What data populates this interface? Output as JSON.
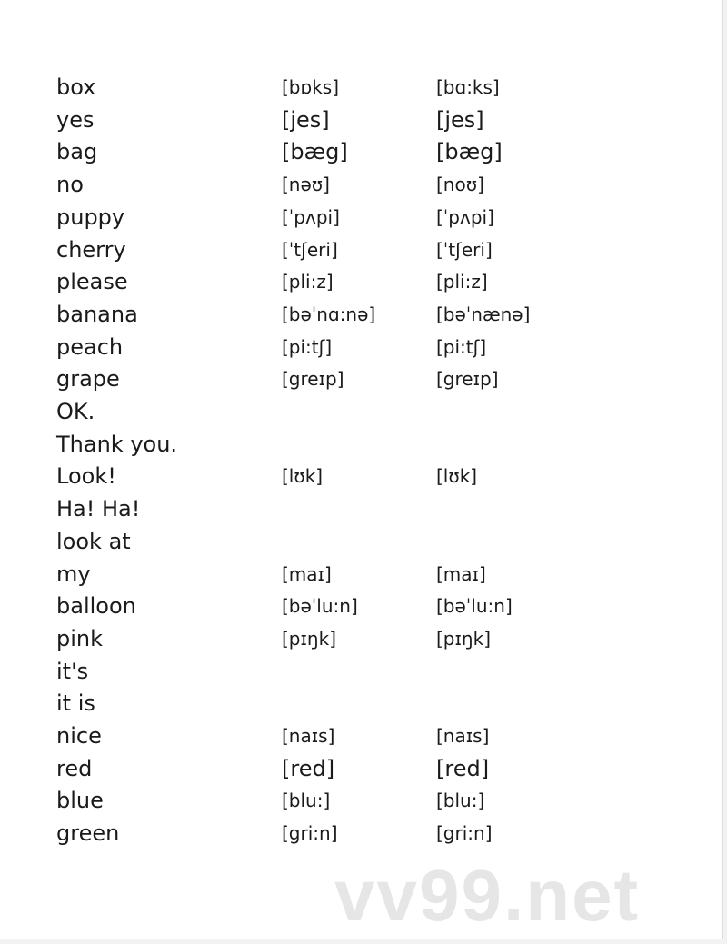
{
  "watermark": "vv99.net",
  "rows": [
    {
      "word": "box",
      "uk": "[bɒks]",
      "us": "[bɑ:ks]"
    },
    {
      "word": "yes",
      "uk": "[jes]",
      "us": "[jes]",
      "big": true
    },
    {
      "word": "bag",
      "uk": "[bæg]",
      "us": "[bæg]",
      "big": true
    },
    {
      "word": "no",
      "uk": "[nəʊ]",
      "us": "[noʊ]"
    },
    {
      "word": "puppy",
      "uk": "[ˈpʌpi]",
      "us": "[ˈpʌpi]"
    },
    {
      "word": "cherry",
      "uk": "[ˈtʃeri]",
      "us": "[ˈtʃeri]"
    },
    {
      "word": "please",
      "uk": "[pli:z]",
      "us": "[pli:z]"
    },
    {
      "word": "banana",
      "uk": "[bəˈnɑ:nə]",
      "us": "[bəˈnænə]"
    },
    {
      "word": "peach",
      "uk": "[pi:tʃ]",
      "us": "[pi:tʃ]"
    },
    {
      "word": "grape",
      "uk": "[greɪp]",
      "us": "[greɪp]"
    },
    {
      "word": "OK.",
      "uk": "",
      "us": ""
    },
    {
      "word": "Thank you.",
      "uk": "",
      "us": ""
    },
    {
      "word": "Look!",
      "uk": "[lʊk]",
      "us": "[lʊk]"
    },
    {
      "word": "Ha! Ha!",
      "uk": "",
      "us": ""
    },
    {
      "word": "look at",
      "uk": "",
      "us": ""
    },
    {
      "word": "my",
      "uk": "[maɪ]",
      "us": "[maɪ]"
    },
    {
      "word": "balloon",
      "uk": "[bəˈlu:n]",
      "us": "[bəˈlu:n]"
    },
    {
      "word": "pink",
      "uk": "[pɪŋk]",
      "us": "[pɪŋk]"
    },
    {
      "word": "it's",
      "uk": "",
      "us": ""
    },
    {
      "word": "it is",
      "uk": "",
      "us": ""
    },
    {
      "word": "nice",
      "uk": "[naɪs]",
      "us": "[naɪs]"
    },
    {
      "word": "red",
      "uk": "[red]",
      "us": "[red]",
      "big": true
    },
    {
      "word": "blue",
      "uk": "[blu:]",
      "us": "[blu:]"
    },
    {
      "word": "green",
      "uk": "[gri:n]",
      "us": "[gri:n]"
    }
  ]
}
